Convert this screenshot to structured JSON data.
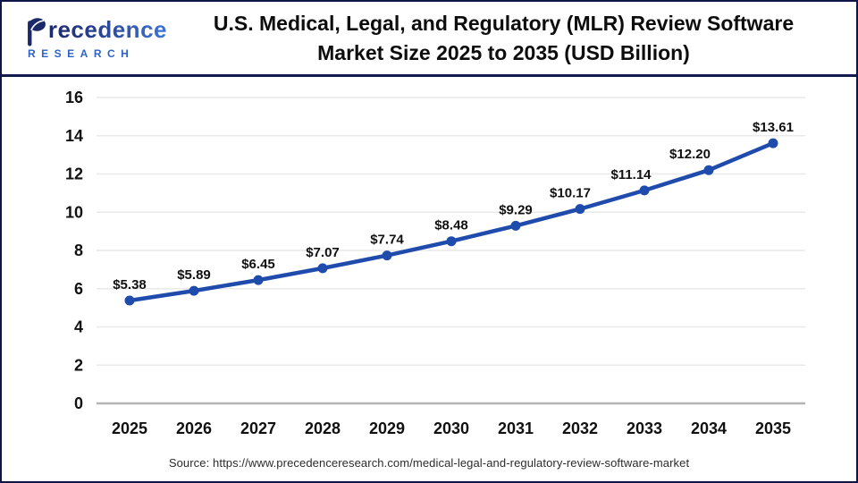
{
  "logo": {
    "brand": "Precedence",
    "brand_rest": "recedence",
    "subtitle": "RESEARCH"
  },
  "header": {
    "title_line1": "U.S. Medical, Legal, and Regulatory (MLR) Review Software",
    "title_line2": "Market Size 2025 to 2035 (USD Billion)"
  },
  "footer": {
    "source": "Source: https://www.precedenceresearch.com/medical-legal-and-regulatory-review-software-market"
  },
  "colors": {
    "line_blue": "#1f4bad",
    "navy_accent": "#131b4e",
    "grid_gray": "#e9e9e9",
    "axis_gray": "#b5b5b5",
    "label_black": "#111111"
  },
  "chart_data": {
    "type": "line",
    "title": "U.S. Medical, Legal, and Regulatory (MLR) Review Software Market Size 2025 to 2035 (USD Billion)",
    "xlabel": "",
    "ylabel": "",
    "categories": [
      "2025",
      "2026",
      "2027",
      "2028",
      "2029",
      "2030",
      "2031",
      "2032",
      "2033",
      "2034",
      "2035"
    ],
    "values": [
      5.38,
      5.89,
      6.45,
      7.07,
      7.74,
      8.48,
      9.29,
      10.17,
      11.14,
      12.2,
      13.61
    ],
    "point_labels": [
      "$5.38",
      "$5.89",
      "$6.45",
      "$7.07",
      "$7.74",
      "$8.48",
      "$9.29",
      "$10.17",
      "$11.14",
      "$12.20",
      "$13.61"
    ],
    "ylim": [
      0,
      16
    ],
    "yticks": [
      0,
      2,
      4,
      6,
      8,
      10,
      12,
      14,
      16
    ],
    "grid": true,
    "legend": false,
    "marker": "circle",
    "line_color": "#1f4bad",
    "unit": "USD Billion"
  }
}
